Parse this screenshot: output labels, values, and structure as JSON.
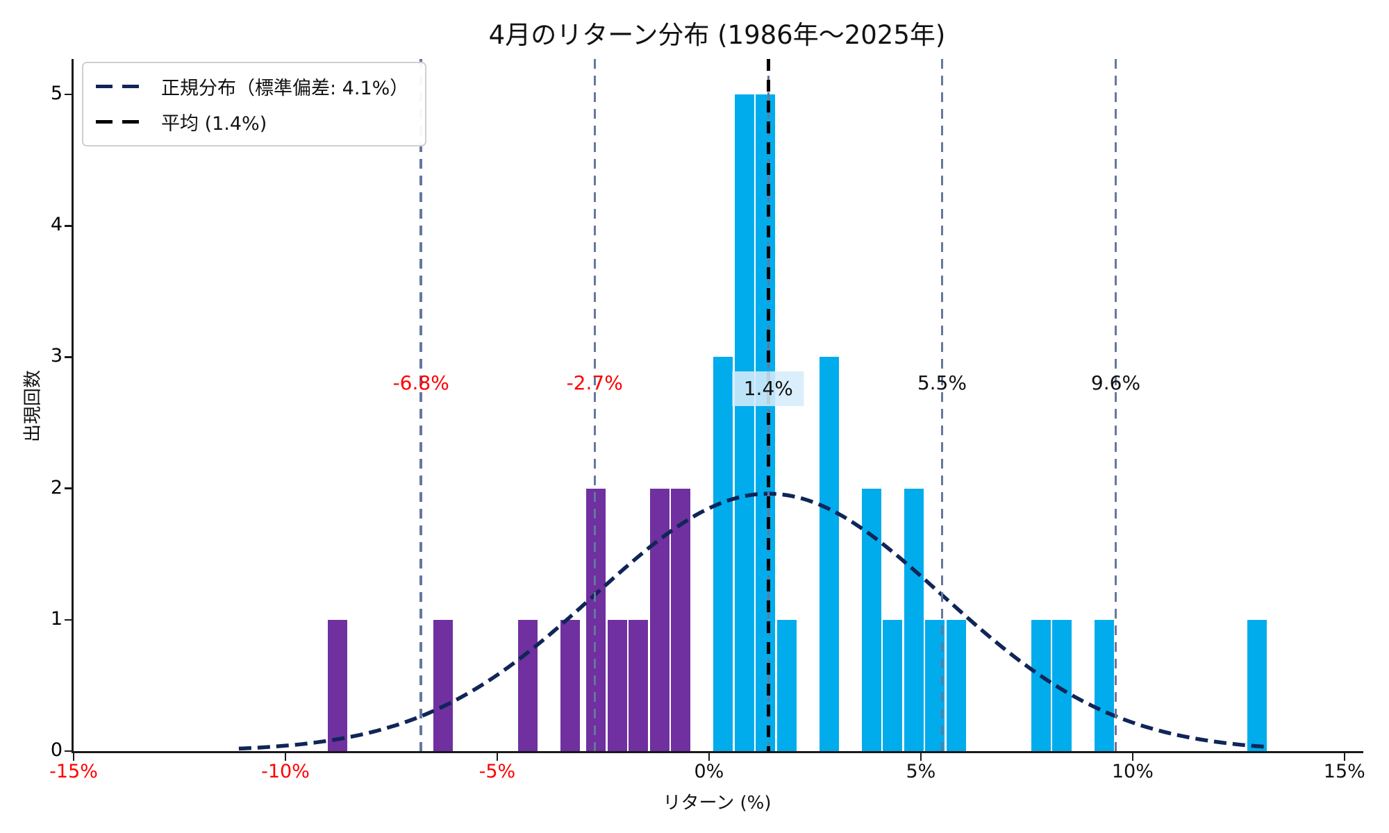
{
  "chart_data": {
    "type": "histogram",
    "title": "4月のリターン分布 (1986年〜2025年)",
    "xlabel": "リターン (%)",
    "ylabel": "出現回数",
    "xlim": [
      -15,
      15.38
    ],
    "ylim": [
      0,
      5.27
    ],
    "grid": false,
    "bin_width": 0.5,
    "x_ticks": [
      {
        "value": -15,
        "label": "-15%",
        "negative": true
      },
      {
        "value": -10,
        "label": "-10%",
        "negative": true
      },
      {
        "value": -5,
        "label": "-5%",
        "negative": true
      },
      {
        "value": 0,
        "label": "0%",
        "negative": false
      },
      {
        "value": 5,
        "label": "5%",
        "negative": false
      },
      {
        "value": 10,
        "label": "10%",
        "negative": false
      },
      {
        "value": 15,
        "label": "15%",
        "negative": false
      }
    ],
    "y_ticks": [
      {
        "value": 0,
        "label": "0"
      },
      {
        "value": 1,
        "label": "1"
      },
      {
        "value": 2,
        "label": "2"
      },
      {
        "value": 3,
        "label": "3"
      },
      {
        "value": 4,
        "label": "4"
      },
      {
        "value": 5,
        "label": "5"
      }
    ],
    "bars": [
      {
        "left": -9.0,
        "count": 1,
        "color": "negative"
      },
      {
        "left": -6.5,
        "count": 1,
        "color": "negative"
      },
      {
        "left": -4.5,
        "count": 1,
        "color": "negative"
      },
      {
        "left": -3.5,
        "count": 1,
        "color": "negative"
      },
      {
        "left": -2.9,
        "count": 2,
        "color": "negative"
      },
      {
        "left": -2.4,
        "count": 1,
        "color": "negative"
      },
      {
        "left": -1.9,
        "count": 1,
        "color": "negative"
      },
      {
        "left": -1.4,
        "count": 2,
        "color": "negative"
      },
      {
        "left": -0.9,
        "count": 2,
        "color": "negative"
      },
      {
        "left": 0.1,
        "count": 3,
        "color": "positive"
      },
      {
        "left": 0.6,
        "count": 5,
        "color": "positive"
      },
      {
        "left": 1.1,
        "count": 5,
        "color": "positive"
      },
      {
        "left": 1.6,
        "count": 1,
        "color": "positive"
      },
      {
        "left": 2.6,
        "count": 3,
        "color": "positive"
      },
      {
        "left": 3.6,
        "count": 2,
        "color": "positive"
      },
      {
        "left": 4.1,
        "count": 1,
        "color": "positive"
      },
      {
        "left": 4.6,
        "count": 2,
        "color": "positive"
      },
      {
        "left": 5.1,
        "count": 1,
        "color": "positive"
      },
      {
        "left": 5.6,
        "count": 1,
        "color": "positive"
      },
      {
        "left": 7.6,
        "count": 1,
        "color": "positive"
      },
      {
        "left": 8.1,
        "count": 1,
        "color": "positive"
      },
      {
        "left": 9.1,
        "count": 1,
        "color": "positive"
      },
      {
        "left": 12.7,
        "count": 1,
        "color": "positive"
      }
    ],
    "normal_curve": {
      "mean": 1.4,
      "std": 4.1,
      "peak": 1.96,
      "x_start": -11.1,
      "x_end": 13.25
    },
    "mean_line": {
      "value": 1.4
    },
    "sigma_lines": [
      {
        "value": -6.8,
        "label": "-6.8%",
        "negative": true,
        "highlight": false
      },
      {
        "value": -2.7,
        "label": "-2.7%",
        "negative": true,
        "highlight": false
      },
      {
        "value": 1.4,
        "label": "1.4%",
        "negative": false,
        "highlight": true
      },
      {
        "value": 5.5,
        "label": "5.5%",
        "negative": false,
        "highlight": false
      },
      {
        "value": 9.6,
        "label": "9.6%",
        "negative": false,
        "highlight": false
      }
    ],
    "legend": {
      "items": [
        {
          "label": "正規分布（標準偏差: 4.1%）",
          "color": "#102558"
        },
        {
          "label": "平均 (1.4%)",
          "color": "#000000"
        }
      ]
    },
    "colors": {
      "negative_bar": "#7030A0",
      "positive_bar": "#00ACEC",
      "curve": "#102558",
      "sigma_line": "#64779E",
      "mean_line": "#000000",
      "negative_text": "#FF0000",
      "positive_text": "#111111",
      "mean_label_bg": "#D6ECFA"
    }
  }
}
